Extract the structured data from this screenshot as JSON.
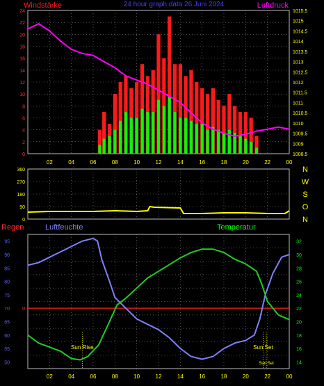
{
  "header": {
    "title": "24 hour graph data  26 Juni 2024",
    "left_label": "Windstärke",
    "right_label": "Luftdruck"
  },
  "colors": {
    "background": "#000000",
    "wind_gust": "#ff1a1a",
    "wind_mean": "#00ff00",
    "pressure": "#ff00ff",
    "direction": "#ffff00",
    "humidity": "#8080ff",
    "temperature": "#22cc22",
    "rain": "#ff2020",
    "axis_yellow": "#ffff00",
    "axis_red": "#ff3030",
    "axis_blue": "#6060ff",
    "axis_green": "#00ff00",
    "title_blue": "#4040ff"
  },
  "time_ticks": [
    "02",
    "04",
    "06",
    "08",
    "10",
    "12",
    "14",
    "16",
    "18",
    "20",
    "22",
    "00"
  ],
  "chart_data": [
    {
      "type": "bar",
      "name": "wind",
      "x_range": [
        0,
        24
      ],
      "ylim": [
        0,
        24
      ],
      "yticks": [
        "0",
        "2",
        "4",
        "6",
        "8",
        "10",
        "12",
        "14",
        "16",
        "18",
        "20",
        "22",
        "24"
      ],
      "y2lim": [
        1008.5,
        1015.5
      ],
      "y2ticks": [
        "1008.5",
        "1009",
        "1009.5",
        "1010",
        "1010.5",
        "1011",
        "1011.5",
        "1012",
        "1012.5",
        "1013",
        "1013.5",
        "1014",
        "1014.5",
        "1015",
        "1015.5"
      ],
      "grid": true,
      "series": [
        {
          "name": "Windstärke",
          "hours": [
            6.6,
            7.0,
            7.5,
            8.0,
            8.5,
            9.0,
            9.5,
            10.0,
            10.5,
            11.0,
            11.5,
            12.0,
            12.5,
            13.0,
            13.5,
            14.0,
            14.5,
            15.0,
            15.5,
            16.0,
            16.5,
            17.0,
            17.5,
            18.0,
            18.5,
            19.0,
            19.5,
            20.0,
            20.5,
            21.0
          ],
          "gust": [
            4,
            7,
            5,
            10,
            12,
            13,
            11,
            12,
            15,
            13,
            14,
            20,
            16,
            23,
            15,
            15,
            13,
            14,
            12,
            11,
            10,
            11,
            9,
            8,
            10,
            8,
            7,
            7,
            6,
            3
          ],
          "mean": [
            1.5,
            2.5,
            3,
            4,
            5.5,
            7,
            6,
            6,
            7.5,
            7,
            7,
            9,
            8,
            9.5,
            7,
            6,
            6,
            5.5,
            5,
            5,
            4,
            4.5,
            4,
            3.5,
            4,
            3.5,
            3,
            2.5,
            2,
            1
          ]
        },
        {
          "name": "Luftdruck",
          "points": [
            [
              0,
              1014.6
            ],
            [
              1,
              1014.85
            ],
            [
              2,
              1014.5
            ],
            [
              3,
              1014.0
            ],
            [
              4,
              1013.6
            ],
            [
              5,
              1013.4
            ],
            [
              6,
              1013.3
            ],
            [
              7,
              1013.0
            ],
            [
              8,
              1012.7
            ],
            [
              9,
              1012.3
            ],
            [
              10,
              1012.1
            ],
            [
              11,
              1011.9
            ],
            [
              12,
              1011.6
            ],
            [
              13,
              1011.3
            ],
            [
              14,
              1011.0
            ],
            [
              15,
              1010.5
            ],
            [
              16,
              1010.0
            ],
            [
              17,
              1009.7
            ],
            [
              18,
              1009.5
            ],
            [
              19,
              1009.35
            ],
            [
              20,
              1009.45
            ],
            [
              21,
              1009.6
            ],
            [
              22,
              1009.7
            ],
            [
              23,
              1009.8
            ],
            [
              24,
              1009.7
            ]
          ]
        }
      ]
    },
    {
      "type": "line",
      "name": "direction",
      "x_range": [
        0,
        24
      ],
      "ylim": [
        0,
        360
      ],
      "yticks": [
        "0",
        "90",
        "180",
        "270",
        "360"
      ],
      "right_labels": [
        "N",
        "W",
        "S",
        "O",
        "N"
      ],
      "grid": true,
      "series": [
        {
          "name": "Windrichtung",
          "points": [
            [
              0,
              50
            ],
            [
              2,
              55
            ],
            [
              4,
              55
            ],
            [
              6,
              55
            ],
            [
              8,
              60
            ],
            [
              10,
              55
            ],
            [
              11,
              60
            ],
            [
              11.2,
              90
            ],
            [
              11.6,
              85
            ],
            [
              14,
              80
            ],
            [
              14.3,
              40
            ],
            [
              16,
              40
            ],
            [
              18,
              45
            ],
            [
              20,
              45
            ],
            [
              22,
              40
            ],
            [
              23.6,
              40
            ],
            [
              24,
              60
            ]
          ]
        }
      ]
    },
    {
      "type": "line",
      "name": "humidity_temperature",
      "x_range": [
        0,
        24
      ],
      "ylabel_left": "Regen",
      "ylabel_humidity": "Luftfeuchte",
      "ylabel_right": "Temperatur",
      "humidity_ylim": [
        47.5,
        97.5
      ],
      "humidity_ticks": [
        "50",
        "55",
        "60",
        "65",
        "70",
        "75",
        "80",
        "85",
        "90",
        "95"
      ],
      "temp_ylim": [
        13,
        33
      ],
      "temp_ticks": [
        "14",
        "16",
        "18",
        "20",
        "22",
        "24",
        "26",
        "28",
        "30",
        "32"
      ],
      "rain_ticks": [
        "0"
      ],
      "grid": true,
      "annotations": [
        {
          "label": "Sun Rise",
          "hour": 5.0
        },
        {
          "label": "Sun Set",
          "hour": 21.6
        },
        {
          "label": "Sun Set",
          "hour": 21.9
        }
      ],
      "series": [
        {
          "name": "Luftfeuchte",
          "points": [
            [
              0,
              86
            ],
            [
              1,
              87
            ],
            [
              2,
              89
            ],
            [
              3,
              91
            ],
            [
              4,
              93
            ],
            [
              5,
              95
            ],
            [
              6,
              96
            ],
            [
              6.4,
              95
            ],
            [
              6.8,
              88
            ],
            [
              7.5,
              80
            ],
            [
              8,
              74
            ],
            [
              9,
              70
            ],
            [
              10,
              66
            ],
            [
              11,
              64
            ],
            [
              12,
              62
            ],
            [
              13,
              59
            ],
            [
              14,
              55
            ],
            [
              15,
              52
            ],
            [
              16,
              51
            ],
            [
              17,
              52
            ],
            [
              18,
              55
            ],
            [
              19,
              57
            ],
            [
              20,
              58
            ],
            [
              20.8,
              60
            ],
            [
              21.3,
              66
            ],
            [
              21.8,
              75
            ],
            [
              22.5,
              83
            ],
            [
              23.3,
              89
            ],
            [
              24,
              90
            ]
          ]
        },
        {
          "name": "Temperatur",
          "points": [
            [
              0,
              18
            ],
            [
              1,
              16.8
            ],
            [
              2,
              16.2
            ],
            [
              3,
              15.6
            ],
            [
              4,
              14.5
            ],
            [
              4.8,
              14.3
            ],
            [
              5.5,
              14.8
            ],
            [
              6.5,
              16.5
            ],
            [
              7.5,
              20
            ],
            [
              8.2,
              22.5
            ],
            [
              9,
              23.5
            ],
            [
              10,
              25
            ],
            [
              11,
              26.5
            ],
            [
              12,
              27.5
            ],
            [
              13,
              28.5
            ],
            [
              14,
              29.5
            ],
            [
              15,
              30.3
            ],
            [
              16,
              30.8
            ],
            [
              17,
              30.8
            ],
            [
              18,
              30.3
            ],
            [
              19,
              29.3
            ],
            [
              20,
              28.6
            ],
            [
              21,
              27.5
            ],
            [
              21.5,
              25.5
            ],
            [
              22,
              23
            ],
            [
              23,
              21
            ],
            [
              24,
              20.3
            ]
          ]
        },
        {
          "name": "Regen",
          "points": [
            [
              0,
              0
            ],
            [
              24,
              0
            ]
          ]
        }
      ]
    }
  ]
}
